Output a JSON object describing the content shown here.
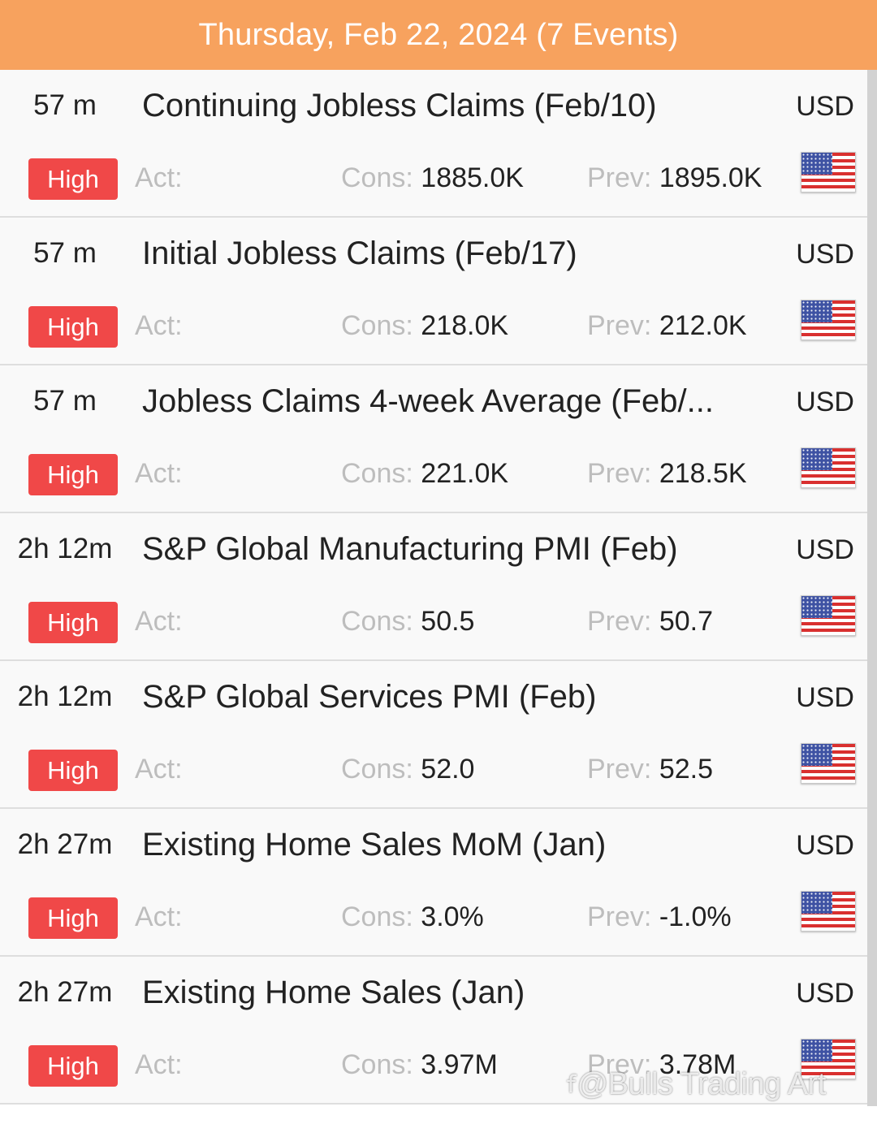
{
  "header": {
    "title": "Thursday, Feb 22, 2024 (7 Events)"
  },
  "labels": {
    "act": "Act:",
    "cons": "Cons:",
    "prev": "Prev:"
  },
  "colors": {
    "header": "#f7a25e",
    "impact_high": "#f04848",
    "label_gray": "#bdbdbd"
  },
  "events": [
    {
      "time": "57 m",
      "title": "Continuing Jobless Claims (Feb/10)",
      "currency": "USD",
      "impact": "High",
      "act": "",
      "cons": "1885.0K",
      "prev": "1895.0K",
      "flag_icon": "us-flag-icon"
    },
    {
      "time": "57 m",
      "title": "Initial Jobless Claims (Feb/17)",
      "currency": "USD",
      "impact": "High",
      "act": "",
      "cons": "218.0K",
      "prev": "212.0K",
      "flag_icon": "us-flag-icon"
    },
    {
      "time": "57 m",
      "title": "Jobless Claims 4-week Average (Feb/...",
      "currency": "USD",
      "impact": "High",
      "act": "",
      "cons": "221.0K",
      "prev": "218.5K",
      "flag_icon": "us-flag-icon"
    },
    {
      "time": "2h 12m",
      "title": "S&P Global Manufacturing PMI (Feb)",
      "currency": "USD",
      "impact": "High",
      "act": "",
      "cons": "50.5",
      "prev": "50.7",
      "flag_icon": "us-flag-icon"
    },
    {
      "time": "2h 12m",
      "title": "S&P Global Services PMI (Feb)",
      "currency": "USD",
      "impact": "High",
      "act": "",
      "cons": "52.0",
      "prev": "52.5",
      "flag_icon": "us-flag-icon"
    },
    {
      "time": "2h 27m",
      "title": "Existing Home Sales MoM (Jan)",
      "currency": "USD",
      "impact": "High",
      "act": "",
      "cons": "3.0%",
      "prev": "-1.0%",
      "flag_icon": "us-flag-icon"
    },
    {
      "time": "2h 27m",
      "title": "Existing Home Sales (Jan)",
      "currency": "USD",
      "impact": "High",
      "act": "",
      "cons": "3.97M",
      "prev": "3.78M",
      "flag_icon": "us-flag-icon"
    }
  ],
  "watermark": {
    "text": "@Bulls Trading Art"
  }
}
